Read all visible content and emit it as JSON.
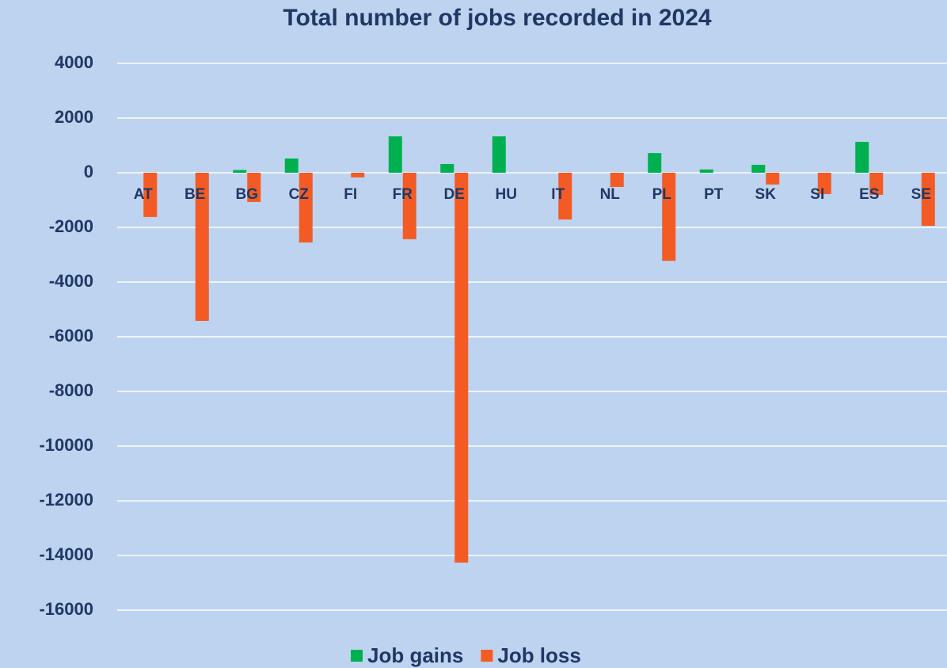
{
  "chart_data": {
    "type": "bar",
    "title": "Total number of jobs recorded in 2024",
    "categories": [
      "AT",
      "BE",
      "BG",
      "CZ",
      "FI",
      "FR",
      "DE",
      "HU",
      "IT",
      "NL",
      "PL",
      "PT",
      "SK",
      "SI",
      "ES",
      "SE"
    ],
    "series": [
      {
        "name": "Job gains",
        "color": "#00b050",
        "values": [
          0,
          0,
          100,
          520,
          0,
          1330,
          320,
          1330,
          0,
          0,
          720,
          120,
          290,
          0,
          1130,
          0
        ]
      },
      {
        "name": "Job loss",
        "color": "#f45a24",
        "values": [
          -1620,
          -5420,
          -1070,
          -2550,
          -170,
          -2430,
          -14260,
          0,
          -1710,
          -520,
          -3220,
          0,
          -430,
          -780,
          -810,
          -1940
        ]
      }
    ],
    "ylim": [
      4000,
      -16000
    ],
    "yticks": [
      4000,
      2000,
      0,
      -2000,
      -4000,
      -6000,
      -8000,
      -10000,
      -12000,
      -14000,
      -16000
    ],
    "grid": true,
    "legend": "bottom"
  }
}
